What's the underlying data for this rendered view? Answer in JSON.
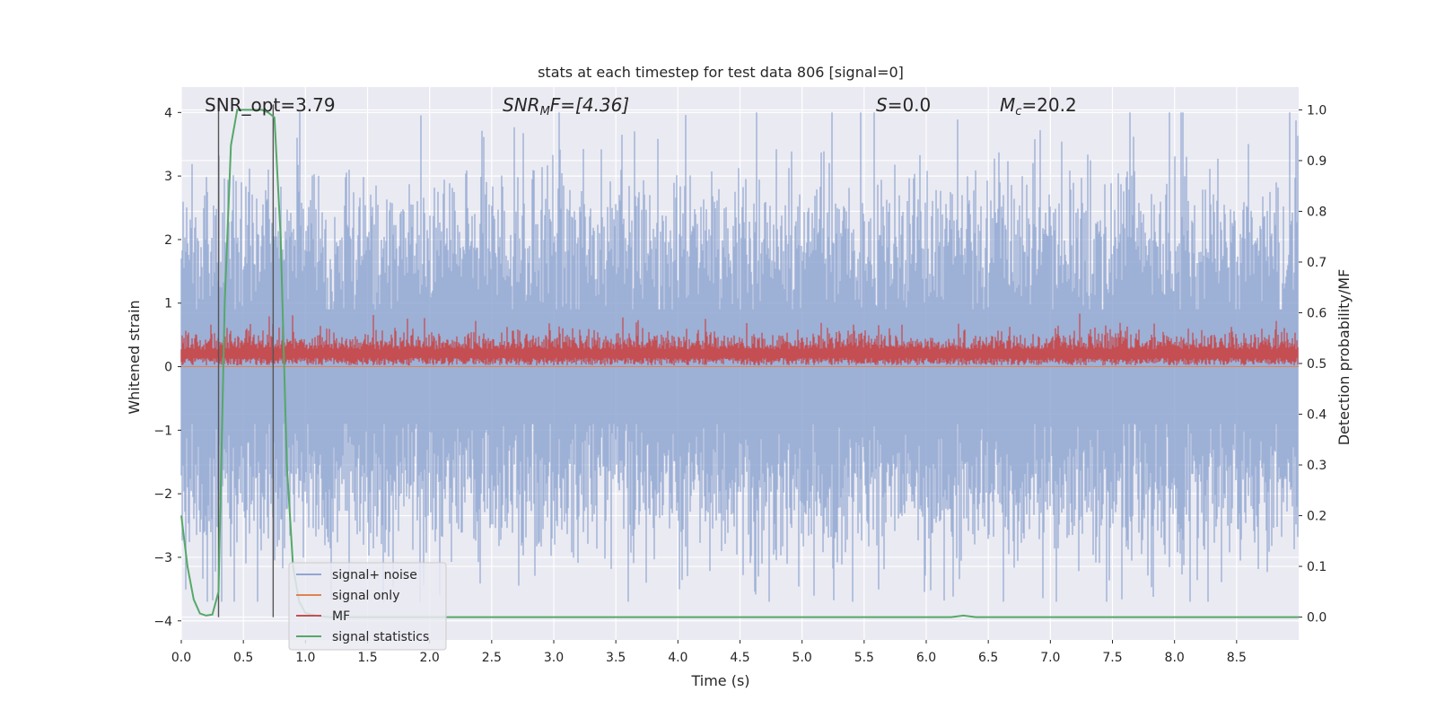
{
  "chart_data": {
    "type": "line",
    "title": "stats at each timestep for test data 806 [signal=0]",
    "xlabel": "Time (s)",
    "ylabel": "Whitened strain",
    "y2label": "Detection probability/MF",
    "xlim": [
      0,
      9.0
    ],
    "ylim": [
      -4.3,
      4.4
    ],
    "y2lim": [
      -0.045,
      1.045
    ],
    "x_ticks": [
      0.0,
      0.5,
      1.0,
      1.5,
      2.0,
      2.5,
      3.0,
      3.5,
      4.0,
      4.5,
      5.0,
      5.5,
      6.0,
      6.5,
      7.0,
      7.5,
      8.0,
      8.5
    ],
    "x_tick_labels": [
      "0.0",
      "0.5",
      "1.0",
      "1.5",
      "2.0",
      "2.5",
      "3.0",
      "3.5",
      "4.0",
      "4.5",
      "5.0",
      "5.5",
      "6.0",
      "6.5",
      "7.0",
      "7.5",
      "8.0",
      "8.5"
    ],
    "y_ticks": [
      4,
      3,
      2,
      1,
      0,
      -1,
      -2,
      -3,
      -4
    ],
    "y_tick_labels": [
      "4",
      "3",
      "2",
      "1",
      "0",
      "−1",
      "−2",
      "−3",
      "−4"
    ],
    "y2_ticks": [
      1.0,
      0.9,
      0.8,
      0.7,
      0.6,
      0.5,
      0.4,
      0.3,
      0.2,
      0.1,
      0.0
    ],
    "y2_tick_labels": [
      "1.0",
      "0.9",
      "0.8",
      "0.7",
      "0.6",
      "0.5",
      "0.4",
      "0.3",
      "0.2",
      "0.1",
      "0.0"
    ],
    "annotations": {
      "snr_opt": "SNR_opt=3.79",
      "snr_mf_label": "SNR",
      "snr_mf_sub": "M",
      "snr_mf_rest": "F=[4.36]",
      "s_label": "S",
      "s_rest": "=0.0",
      "mc_label": "M",
      "mc_sub": "c",
      "mc_rest": "=20.2"
    },
    "vlines": [
      0.3,
      0.74
    ],
    "legend": {
      "position": "lower-left",
      "entries": [
        "signal+ noise",
        "signal only",
        "MF",
        "signal statistics"
      ]
    },
    "series": [
      {
        "name": "signal+ noise",
        "axis": "left",
        "color": "#8fa6d1",
        "style": "dense-noise",
        "x_range": [
          0,
          9.0
        ],
        "amplitude": 1.5,
        "peak_max": 4.0,
        "peak_min": -3.7
      },
      {
        "name": "signal only",
        "axis": "left",
        "color": "#dd8452",
        "style": "flat",
        "value": 0
      },
      {
        "name": "MF",
        "axis": "left",
        "color": "#c44e52",
        "style": "dense-noise",
        "x_range": [
          0,
          9.0
        ],
        "baseline": 0.02,
        "typical_max": 0.55,
        "peak_max": 0.88
      },
      {
        "name": "signal statistics",
        "axis": "right",
        "color": "#55a868",
        "style": "line",
        "x": [
          0.0,
          0.05,
          0.1,
          0.15,
          0.2,
          0.25,
          0.3,
          0.35,
          0.4,
          0.45,
          0.5,
          0.55,
          0.6,
          0.65,
          0.7,
          0.75,
          0.8,
          0.85,
          0.9,
          0.95,
          1.0,
          1.1,
          1.2,
          1.5,
          2.0,
          3.0,
          4.0,
          5.0,
          6.0,
          6.2,
          6.3,
          6.4,
          6.5,
          7.0,
          8.0,
          9.0
        ],
        "y": [
          0.2,
          0.1,
          0.035,
          0.007,
          0.003,
          0.005,
          0.05,
          0.62,
          0.93,
          1.0,
          1.0,
          1.0,
          1.0,
          1.0,
          0.995,
          0.985,
          0.75,
          0.3,
          0.1,
          0.03,
          0.008,
          0.002,
          0.0,
          0.0,
          0.0,
          0.0,
          0.0,
          0.0,
          0.0,
          0.0,
          0.003,
          0.0,
          0.0,
          0.0,
          0.0,
          0.0
        ]
      }
    ]
  },
  "colors": {
    "plot_bg": "#eaeaf2",
    "grid": "#ffffff",
    "text": "#262626",
    "vline": "#555555"
  }
}
